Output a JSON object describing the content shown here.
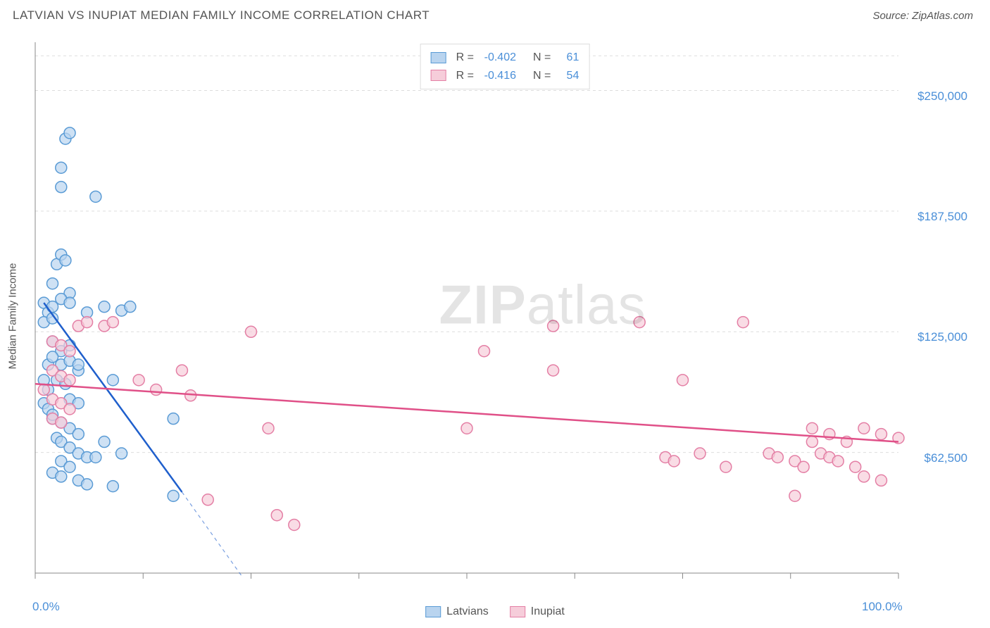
{
  "header": {
    "title": "LATVIAN VS INUPIAT MEDIAN FAMILY INCOME CORRELATION CHART",
    "source": "Source: ZipAtlas.com"
  },
  "watermark": {
    "bold": "ZIP",
    "light": "atlas"
  },
  "chart": {
    "type": "scatter",
    "ylabel": "Median Family Income",
    "background_color": "#ffffff",
    "grid_color": "#dddddd",
    "axis_color": "#888888",
    "tick_color": "#888888",
    "xlim": [
      0,
      100
    ],
    "ylim": [
      0,
      275000
    ],
    "xticks": [
      0,
      12.5,
      25,
      37.5,
      50,
      62.5,
      75,
      87.5,
      100
    ],
    "xtick_labels": {
      "0": "0.0%",
      "100": "100.0%"
    },
    "yticks": [
      62500,
      125000,
      187500,
      250000
    ],
    "ytick_labels": [
      "$62,500",
      "$125,000",
      "$187,500",
      "$250,000"
    ],
    "ytick_grid_top": 268000,
    "marker_radius": 8,
    "marker_stroke_width": 1.5,
    "trend_stroke_width": 2.5,
    "series": [
      {
        "name": "Latvians",
        "fill": "#b9d4ef",
        "stroke": "#5a9bd5",
        "trend_color": "#1f5fcc",
        "r_label": "R =",
        "r_value": "-0.402",
        "n_label": "N =",
        "n_value": "61",
        "trend": {
          "x1": 1,
          "y1": 140000,
          "x2": 17,
          "y2": 42000,
          "dash_x2": 24,
          "dash_y2": -2000
        },
        "points": [
          [
            1,
            140000
          ],
          [
            1.5,
            135000
          ],
          [
            1,
            130000
          ],
          [
            2,
            132000
          ],
          [
            2.5,
            160000
          ],
          [
            3,
            165000
          ],
          [
            3.5,
            162000
          ],
          [
            2,
            150000
          ],
          [
            4,
            145000
          ],
          [
            3,
            210000
          ],
          [
            3.5,
            225000
          ],
          [
            4,
            228000
          ],
          [
            3,
            200000
          ],
          [
            7,
            195000
          ],
          [
            2,
            120000
          ],
          [
            3,
            115000
          ],
          [
            4,
            118000
          ],
          [
            5,
            105000
          ],
          [
            2.5,
            100000
          ],
          [
            3.5,
            98000
          ],
          [
            1.5,
            95000
          ],
          [
            4,
            90000
          ],
          [
            5,
            88000
          ],
          [
            6,
            135000
          ],
          [
            8,
            138000
          ],
          [
            10,
            136000
          ],
          [
            11,
            138000
          ],
          [
            9,
            100000
          ],
          [
            2,
            80000
          ],
          [
            3,
            78000
          ],
          [
            4,
            75000
          ],
          [
            5,
            72000
          ],
          [
            2.5,
            70000
          ],
          [
            3,
            68000
          ],
          [
            4,
            65000
          ],
          [
            5,
            62000
          ],
          [
            6,
            60000
          ],
          [
            3,
            58000
          ],
          [
            4,
            55000
          ],
          [
            2,
            52000
          ],
          [
            3,
            50000
          ],
          [
            5,
            48000
          ],
          [
            6,
            46000
          ],
          [
            7,
            60000
          ],
          [
            8,
            68000
          ],
          [
            10,
            62000
          ],
          [
            9,
            45000
          ],
          [
            16,
            80000
          ],
          [
            16,
            40000
          ],
          [
            1,
            100000
          ],
          [
            1.5,
            108000
          ],
          [
            2,
            112000
          ],
          [
            1,
            88000
          ],
          [
            1.5,
            85000
          ],
          [
            2,
            82000
          ],
          [
            3,
            108000
          ],
          [
            4,
            110000
          ],
          [
            5,
            108000
          ],
          [
            2,
            138000
          ],
          [
            3,
            142000
          ],
          [
            4,
            140000
          ]
        ]
      },
      {
        "name": "Inupiat",
        "fill": "#f6cdda",
        "stroke": "#e47fa5",
        "trend_color": "#e05088",
        "r_label": "R =",
        "r_value": "-0.416",
        "n_label": "N =",
        "n_value": "54",
        "trend": {
          "x1": 0,
          "y1": 98000,
          "x2": 100,
          "y2": 68000
        },
        "points": [
          [
            2,
            120000
          ],
          [
            3,
            118000
          ],
          [
            4,
            115000
          ],
          [
            5,
            128000
          ],
          [
            6,
            130000
          ],
          [
            8,
            128000
          ],
          [
            9,
            130000
          ],
          [
            12,
            100000
          ],
          [
            14,
            95000
          ],
          [
            18,
            92000
          ],
          [
            17,
            105000
          ],
          [
            2,
            105000
          ],
          [
            3,
            102000
          ],
          [
            4,
            100000
          ],
          [
            1,
            95000
          ],
          [
            2,
            90000
          ],
          [
            3,
            88000
          ],
          [
            4,
            85000
          ],
          [
            2,
            80000
          ],
          [
            3,
            78000
          ],
          [
            25,
            125000
          ],
          [
            27,
            75000
          ],
          [
            28,
            30000
          ],
          [
            30,
            25000
          ],
          [
            20,
            38000
          ],
          [
            50,
            75000
          ],
          [
            52,
            115000
          ],
          [
            60,
            128000
          ],
          [
            60,
            105000
          ],
          [
            70,
            130000
          ],
          [
            73,
            60000
          ],
          [
            74,
            58000
          ],
          [
            75,
            100000
          ],
          [
            77,
            62000
          ],
          [
            80,
            55000
          ],
          [
            82,
            130000
          ],
          [
            85,
            62000
          ],
          [
            86,
            60000
          ],
          [
            88,
            58000
          ],
          [
            89,
            55000
          ],
          [
            90,
            75000
          ],
          [
            90,
            68000
          ],
          [
            91,
            62000
          ],
          [
            92,
            72000
          ],
          [
            92,
            60000
          ],
          [
            93,
            58000
          ],
          [
            94,
            68000
          ],
          [
            95,
            55000
          ],
          [
            96,
            50000
          ],
          [
            96,
            75000
          ],
          [
            98,
            48000
          ],
          [
            98,
            72000
          ],
          [
            100,
            70000
          ],
          [
            88,
            40000
          ]
        ]
      }
    ],
    "bottom_legend": [
      {
        "label": "Latvians",
        "fill": "#b9d4ef",
        "stroke": "#5a9bd5"
      },
      {
        "label": "Inupiat",
        "fill": "#f6cdda",
        "stroke": "#e47fa5"
      }
    ]
  }
}
